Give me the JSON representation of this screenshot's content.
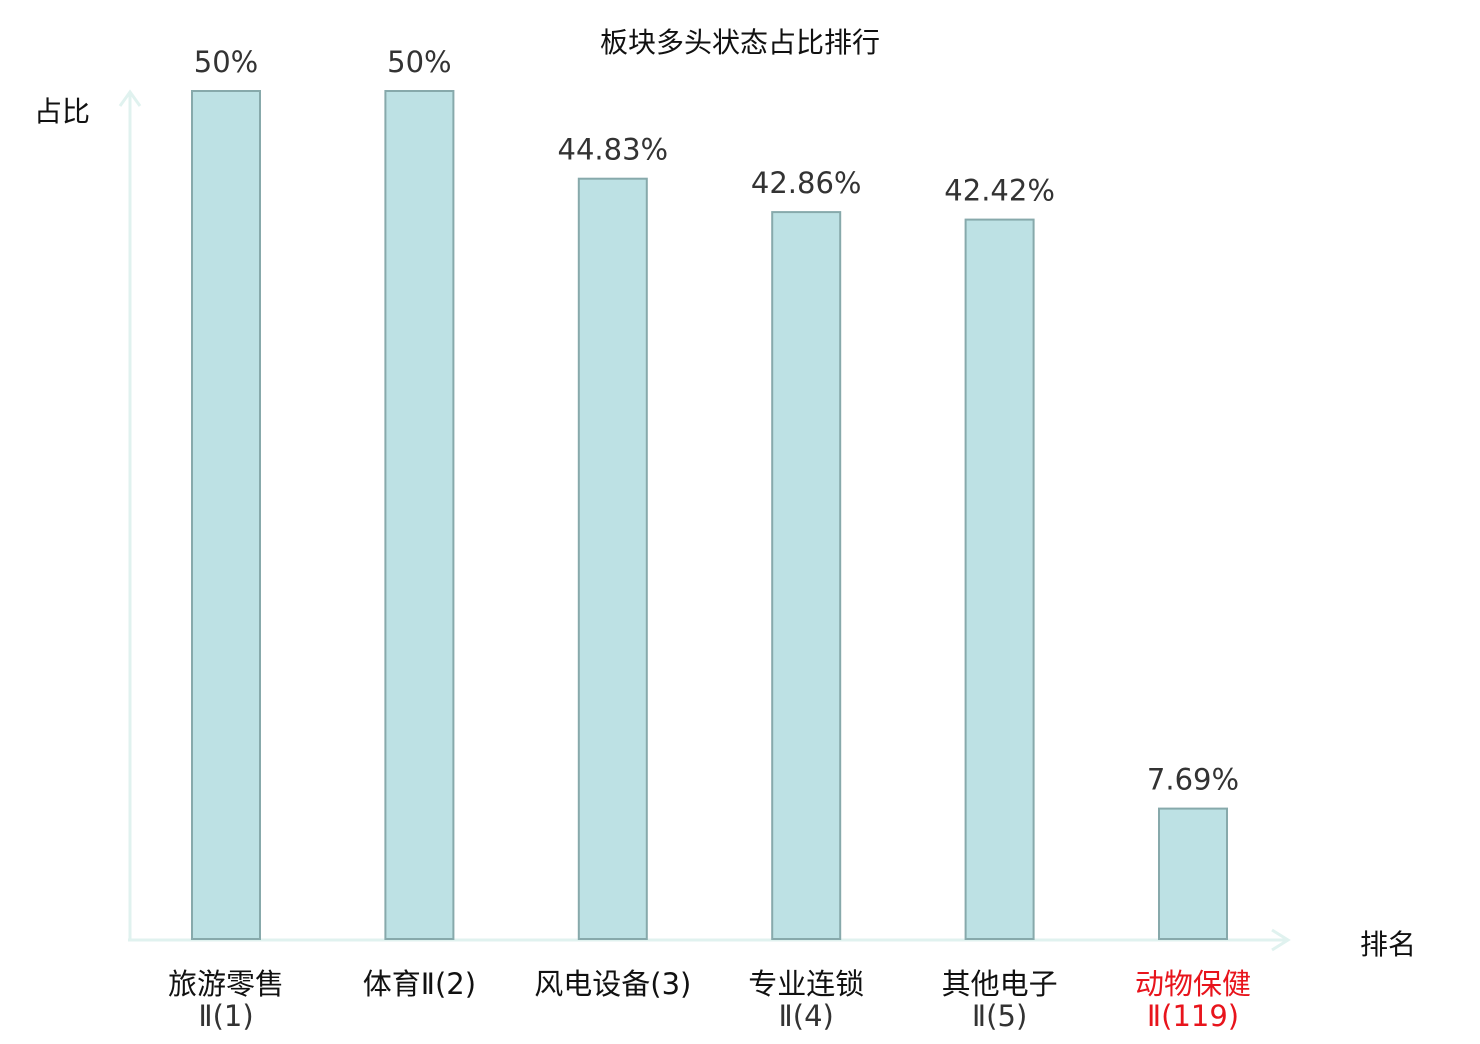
{
  "chart_data": {
    "type": "bar",
    "title": "板块多头状态占比排行",
    "ylabel": "占比",
    "xlabel": "排名",
    "ylim": [
      0,
      50
    ],
    "grid": false,
    "categories": [
      {
        "line1": "旅游零售",
        "line2": "Ⅱ(1)",
        "highlight": false
      },
      {
        "line1": "体育Ⅱ(2)",
        "line2": "",
        "highlight": false
      },
      {
        "line1": "风电设备(3)",
        "line2": "",
        "highlight": false
      },
      {
        "line1": "专业连锁",
        "line2": "Ⅱ(4)",
        "highlight": false
      },
      {
        "line1": "其他电子",
        "line2": "Ⅱ(5)",
        "highlight": false
      },
      {
        "line1": "动物保健",
        "line2": "Ⅱ(119)",
        "highlight": true
      }
    ],
    "values": [
      50,
      50,
      44.83,
      42.86,
      42.42,
      7.69
    ],
    "value_labels": [
      "50%",
      "50%",
      "44.83%",
      "42.86%",
      "42.42%",
      "7.69%"
    ],
    "colors": {
      "bar_fill": "#bde1e4",
      "bar_stroke": "#87a9ab",
      "axis": "#e0f2ef",
      "text": "#333333",
      "category_text": "#111111",
      "highlight": "#e8141c"
    }
  }
}
